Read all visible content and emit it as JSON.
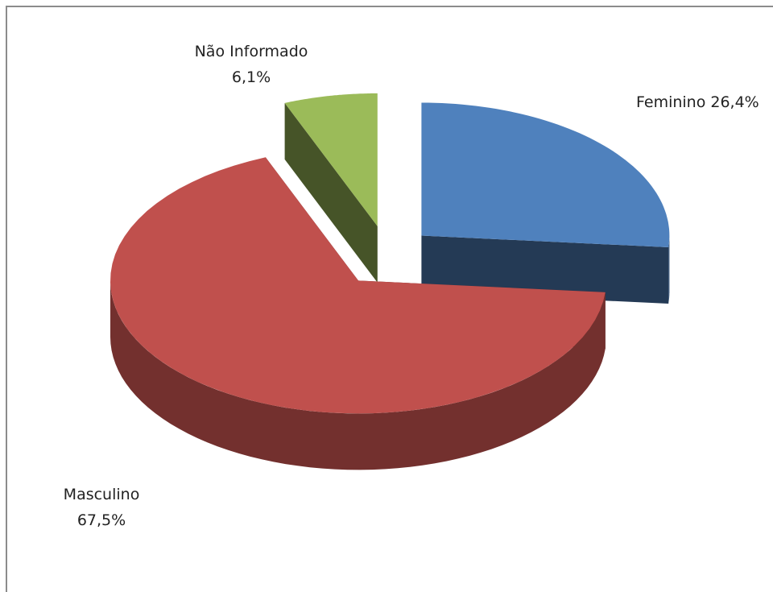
{
  "chart_data": {
    "type": "pie",
    "categories": [
      "Feminino",
      "Masculino",
      "Não Informado"
    ],
    "values": [
      26.4,
      67.5,
      6.1
    ],
    "value_labels": [
      "26,4%",
      "67,5%",
      "6,1%"
    ],
    "colors": [
      "#4f81bd",
      "#c0504d",
      "#9bbb59"
    ]
  }
}
